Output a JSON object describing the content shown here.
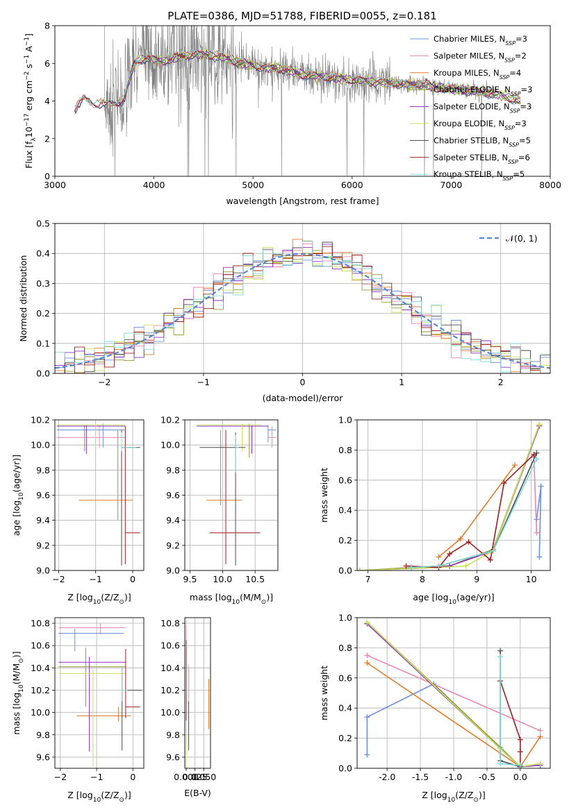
{
  "figure_title": "PLATE=0386, MJD=51788, FIBERID=0055, z=0.181",
  "colors": {
    "Chabrier MILES": "#6a8fdc",
    "Salpeter MILES": "#e886b4",
    "Kroupa MILES": "#e07b2a",
    "Chabrier ELODIE": "#8f9a2a",
    "Salpeter ELODIE": "#8a2fc0",
    "Kroupa ELODIE": "#c7e05a",
    "Chabrier STELIB": "#4a4a4a",
    "Salpeter STELIB": "#a01c1c",
    "Kroupa STELIB": "#7fd9d9",
    "normal": "#5b86d6",
    "data": "#808080",
    "grid": "#b0b0b0"
  },
  "chart_data": [
    {
      "type": "line",
      "id": "spectrum",
      "title": "PLATE=0386, MJD=51788, FIBERID=0055, z=0.181",
      "xlabel": "wavelength [Angstrom, rest frame]",
      "ylabel_main": "Flux [f",
      "ylabel_sub": "λ",
      "ylabel_rest": "10",
      "ylabel_exp1": "−17",
      "ylabel_unit": " erg cm",
      "ylabel_exp2": "−2",
      "ylabel_s": " s",
      "ylabel_exp3": "−1",
      "ylabel_end": " A",
      "ylabel_exp4": "−1",
      "ylabel_close": "]",
      "xlim": [
        3000,
        8000
      ],
      "ylim": [
        0,
        8
      ],
      "xticks": [
        3000,
        4000,
        5000,
        6000,
        7000,
        8000
      ],
      "yticks": [
        0,
        2,
        4,
        6,
        8
      ],
      "legend_position": "right",
      "legend": [
        {
          "name": "Chabrier MILES",
          "n": "3"
        },
        {
          "name": "Salpeter MILES",
          "n": "2"
        },
        {
          "name": "Kroupa MILES",
          "n": "4"
        },
        {
          "name": "Chabrier ELODIE",
          "n": "3"
        },
        {
          "name": "Salpeter ELODIE",
          "n": "3"
        },
        {
          "name": "Kroupa ELODIE",
          "n": "3"
        },
        {
          "name": "Chabrier STELIB",
          "n": "5"
        },
        {
          "name": "Salpeter STELIB",
          "n": "6"
        },
        {
          "name": "Kroupa STELIB",
          "n": "5"
        }
      ],
      "legend_suffix": "SSP",
      "legend_prefix": "N",
      "model_continuum": {
        "x": [
          3200,
          3300,
          3400,
          3500,
          3600,
          3700,
          3800,
          3900,
          4000,
          4100,
          4300,
          4500,
          4700,
          4900,
          5100,
          5300,
          5500,
          5700,
          5900,
          6100,
          6300,
          6500,
          6700,
          6900,
          7100,
          7300,
          7500,
          7700
        ],
        "y": [
          3.6,
          4.1,
          3.9,
          3.8,
          3.9,
          4.1,
          6.0,
          6.3,
          6.2,
          6.1,
          6.4,
          6.5,
          6.3,
          6.0,
          5.8,
          5.7,
          5.4,
          5.3,
          5.2,
          5.1,
          5.0,
          4.9,
          4.9,
          4.7,
          4.6,
          4.5,
          4.3,
          4.0
        ]
      }
    },
    {
      "type": "line",
      "id": "residuals",
      "xlabel": "(data-model)/error",
      "ylabel": "Normed distribution",
      "xlim": [
        -2.5,
        2.5
      ],
      "ylim": [
        0,
        0.5
      ],
      "xticks": [
        -2,
        -1,
        0,
        1,
        2
      ],
      "yticks": [
        0.0,
        0.1,
        0.2,
        0.3,
        0.4,
        0.5
      ],
      "legend_label": "𝒩(0, 1)",
      "legend_position": "top-right",
      "histogram_bin_width": 0.1
    },
    {
      "type": "scatter",
      "id": "age-vs-Z",
      "xlabel": "Z [log",
      "xlabel_sub": "10",
      "xlabel_rest": "(Z/Z",
      "xlabel_sub2": "⊙",
      "xlabel_end": ")]",
      "ylabel": "age  [log",
      "ylabel_sub": "10",
      "ylabel_rest": "(age/yr)]",
      "xlim": [
        -2.1,
        0.3
      ],
      "ylim": [
        9.0,
        10.2
      ],
      "xticks": [
        -2,
        -1,
        0
      ],
      "yticks": [
        9.0,
        9.2,
        9.4,
        9.6,
        9.8,
        10.0,
        10.2
      ],
      "points": [
        {
          "model": "Chabrier MILES",
          "x": -0.8,
          "xl": -2.05,
          "xh": -0.2,
          "y": 10.12,
          "yl": 9.98,
          "yh": 10.17
        },
        {
          "model": "Salpeter MILES",
          "x": -0.9,
          "xl": -2.05,
          "xh": -0.2,
          "y": 10.06,
          "yl": 9.98,
          "yh": 10.16
        },
        {
          "model": "Kroupa MILES",
          "x": -0.4,
          "xl": -1.45,
          "xh": 0.0,
          "y": 9.56,
          "yl": 9.4,
          "yh": 10.12
        },
        {
          "model": "Chabrier ELODIE",
          "x": -1.3,
          "xl": -2.05,
          "xh": -0.2,
          "y": 10.15,
          "yl": 9.95,
          "yh": 10.16
        },
        {
          "model": "Salpeter ELODIE",
          "x": -1.25,
          "xl": -2.05,
          "xh": -0.2,
          "y": 10.15,
          "yl": 9.93,
          "yh": 10.16
        },
        {
          "model": "Kroupa ELODIE",
          "x": -1.0,
          "xl": -2.05,
          "xh": -0.2,
          "y": 10.16,
          "yl": 9.95,
          "yh": 10.17
        },
        {
          "model": "Chabrier STELIB",
          "x": -0.3,
          "xl": -0.3,
          "xh": 0.2,
          "y": 9.98,
          "yl": 9.04,
          "yh": 10.12
        },
        {
          "model": "Salpeter STELIB",
          "x": -0.2,
          "xl": -0.2,
          "xh": 0.2,
          "y": 9.3,
          "yl": 9.05,
          "yh": 10.15
        },
        {
          "model": "Kroupa STELIB",
          "x": -0.3,
          "xl": -0.3,
          "xh": 0.1,
          "y": 9.98,
          "yl": 9.95,
          "yh": 10.1
        }
      ]
    },
    {
      "type": "scatter",
      "id": "age-vs-mass",
      "xlabel": "mass [log",
      "xlabel_sub": "10",
      "xlabel_rest": "(M/M",
      "xlabel_sub2": "⊙",
      "xlabel_end": ")]",
      "xlim": [
        9.42,
        10.85
      ],
      "ylim": [
        9.0,
        10.2
      ],
      "xticks": [
        9.5,
        10.0,
        10.5
      ],
      "yticks": [
        9.0,
        9.2,
        9.4,
        9.6,
        9.8,
        10.0,
        10.2
      ],
      "points": [
        {
          "model": "Chabrier MILES",
          "x": 10.7,
          "xl": 10.7,
          "xh": 10.82,
          "y": 10.12,
          "yl": 10.02,
          "yh": 10.16
        },
        {
          "model": "Salpeter MILES",
          "x": 10.76,
          "xl": 10.7,
          "xh": 10.82,
          "y": 10.06,
          "yl": 9.98,
          "yh": 10.15
        },
        {
          "model": "Kroupa MILES",
          "x": 9.97,
          "xl": 9.75,
          "xh": 10.3,
          "y": 9.56,
          "yl": 9.52,
          "yh": 10.12
        },
        {
          "model": "Chabrier ELODIE",
          "x": 10.41,
          "xl": 9.6,
          "xh": 10.7,
          "y": 10.15,
          "yl": 9.9,
          "yh": 10.17
        },
        {
          "model": "Salpeter ELODIE",
          "x": 10.45,
          "xl": 9.6,
          "xh": 10.7,
          "y": 10.15,
          "yl": 9.93,
          "yh": 10.16
        },
        {
          "model": "Kroupa ELODIE",
          "x": 10.3,
          "xl": 9.6,
          "xh": 10.6,
          "y": 10.16,
          "yl": 9.95,
          "yh": 10.17
        },
        {
          "model": "Chabrier STELIB",
          "x": 10.2,
          "xl": 9.65,
          "xh": 10.35,
          "y": 9.98,
          "yl": 9.04,
          "yh": 10.1
        },
        {
          "model": "Salpeter STELIB",
          "x": 10.05,
          "xl": 9.8,
          "xh": 10.58,
          "y": 9.3,
          "yl": 9.05,
          "yh": 10.12
        },
        {
          "model": "Kroupa STELIB",
          "x": 10.2,
          "xl": 10.2,
          "xh": 10.25,
          "y": 9.98,
          "yl": 9.78,
          "yh": 10.08
        }
      ]
    },
    {
      "type": "line",
      "id": "massweight-vs-age",
      "xlabel": "age  [log",
      "xlabel_sub": "10",
      "xlabel_rest": "(age/yr)]",
      "ylabel": "mass weight",
      "xlim": [
        6.8,
        10.35
      ],
      "ylim": [
        0,
        1.0
      ],
      "xticks": [
        7,
        8,
        9,
        10
      ],
      "yticks": [
        0.0,
        0.2,
        0.4,
        0.6,
        0.8,
        1.0
      ],
      "series": [
        {
          "model": "Chabrier MILES",
          "x": [
            10.1,
            10.18,
            10.15
          ],
          "y": [
            0.34,
            0.56,
            0.09
          ]
        },
        {
          "model": "Salpeter MILES",
          "x": [
            10.05,
            10.1
          ],
          "y": [
            0.75,
            0.25
          ]
        },
        {
          "model": "Kroupa MILES",
          "x": [
            8.3,
            8.7,
            9.7
          ],
          "y": [
            0.09,
            0.21,
            0.7
          ]
        },
        {
          "model": "Chabrier ELODIE",
          "x": [
            6.85,
            8.3,
            8.5,
            9.3,
            10.15
          ],
          "y": [
            0.0,
            0.03,
            0.03,
            0.14,
            0.97
          ]
        },
        {
          "model": "Salpeter ELODIE",
          "x": [
            6.85,
            8.3,
            8.5,
            9.3,
            10.15
          ],
          "y": [
            0.0,
            0.02,
            0.03,
            0.13,
            0.96
          ]
        },
        {
          "model": "Kroupa ELODIE",
          "x": [
            6.85,
            8.3,
            8.8,
            9.3,
            10.15
          ],
          "y": [
            0.0,
            0.02,
            0.03,
            0.13,
            0.97
          ]
        },
        {
          "model": "Chabrier STELIB",
          "x": [
            7.8,
            8.3,
            9.3,
            10.1
          ],
          "y": [
            0.02,
            0.03,
            0.13,
            0.78
          ]
        },
        {
          "model": "Salpeter STELIB",
          "x": [
            7.7,
            8.3,
            8.5,
            8.85,
            9.25,
            9.5,
            10.05
          ],
          "y": [
            0.03,
            0.02,
            0.11,
            0.19,
            0.07,
            0.58,
            0.77
          ]
        },
        {
          "model": "Kroupa STELIB",
          "x": [
            7.8,
            8.3,
            9.3,
            10.1
          ],
          "y": [
            0.02,
            0.03,
            0.13,
            0.74
          ]
        }
      ]
    },
    {
      "type": "scatter",
      "id": "mass-vs-Z",
      "xlabel": "Z [log",
      "xlabel_sub": "10",
      "xlabel_rest": "(Z/Z",
      "xlabel_sub2": "⊙",
      "xlabel_end": ")]",
      "ylabel": "mass [log",
      "ylabel_sub": "10",
      "ylabel_rest": "(M/M",
      "ylabel_sub2": "⊙",
      "ylabel_end": ")]",
      "xlim": [
        -2.15,
        0.3
      ],
      "ylim": [
        9.5,
        10.85
      ],
      "xticks": [
        -2,
        -1,
        0
      ],
      "yticks": [
        9.6,
        9.8,
        10.0,
        10.2,
        10.4,
        10.6,
        10.8
      ],
      "points": [
        {
          "model": "Chabrier MILES",
          "x": -1.6,
          "xl": -2.05,
          "xh": -0.25,
          "y": 10.71,
          "yl": 10.55,
          "yh": 10.75
        },
        {
          "model": "Salpeter MILES",
          "x": -0.9,
          "xl": -2.05,
          "xh": -0.2,
          "y": 10.76,
          "yl": 10.7,
          "yh": 10.8
        },
        {
          "model": "Kroupa MILES",
          "x": -0.4,
          "xl": -1.55,
          "xh": -0.05,
          "y": 9.97,
          "yl": 9.92,
          "yh": 10.05
        },
        {
          "model": "Chabrier ELODIE",
          "x": -1.3,
          "xl": -2.05,
          "xh": -0.2,
          "y": 10.41,
          "yl": 10.05,
          "yh": 10.58
        },
        {
          "model": "Salpeter ELODIE",
          "x": -1.2,
          "xl": -2.05,
          "xh": -0.2,
          "y": 10.45,
          "yl": 9.65,
          "yh": 10.5
        },
        {
          "model": "Kroupa ELODIE",
          "x": -1.1,
          "xl": -2.05,
          "xh": -0.2,
          "y": 10.35,
          "yl": 9.52,
          "yh": 10.4
        },
        {
          "model": "Chabrier STELIB",
          "x": -0.3,
          "xl": -0.3,
          "xh": 0.25,
          "y": 10.2,
          "yl": 9.66,
          "yh": 10.4
        },
        {
          "model": "Salpeter STELIB",
          "x": -0.2,
          "xl": -0.2,
          "xh": 0.2,
          "y": 10.05,
          "yl": 9.95,
          "yh": 10.57
        },
        {
          "model": "Kroupa STELIB",
          "x": -0.3,
          "xl": -0.3,
          "xh": -0.15,
          "y": 10.2,
          "yl": 10.1,
          "yh": 10.42
        }
      ]
    },
    {
      "type": "scatter",
      "id": "mass-vs-EBV",
      "xlabel": "E(B-V)",
      "xlim": [
        -0.004,
        0.069
      ],
      "ylim": [
        9.5,
        10.85
      ],
      "xticks": [
        0.0,
        0.025,
        0.05
      ],
      "yticks": [
        9.6,
        9.8,
        10.0,
        10.2,
        10.4,
        10.6,
        10.8
      ],
      "points": [
        {
          "model": "Salpeter MILES",
          "x": 0.0,
          "yl": 10.5,
          "yh": 10.78
        },
        {
          "model": "Salpeter STELIB",
          "x": 0.0,
          "yl": 9.93,
          "yh": 10.65
        },
        {
          "model": "Kroupa ELODIE",
          "x": 0.0,
          "yl": 9.5,
          "yh": 9.8
        },
        {
          "model": "Chabrier STELIB",
          "x": 0.007,
          "yl": 9.66,
          "yh": 10.4
        },
        {
          "model": "Kroupa STELIB",
          "x": 0.007,
          "yl": 10.1,
          "yh": 10.43
        },
        {
          "model": "Kroupa MILES",
          "x": 0.064,
          "yl": 9.85,
          "yh": 10.3
        }
      ]
    },
    {
      "type": "line",
      "id": "massweight-vs-Z",
      "xlabel": "Z [log",
      "xlabel_sub": "10",
      "xlabel_rest": "(Z/Z",
      "xlabel_sub2": "⊙",
      "xlabel_end": ")]",
      "ylabel": "mass weight",
      "xlim": [
        -2.45,
        0.45
      ],
      "ylim": [
        0,
        1.0
      ],
      "xticks": [
        -2.0,
        -1.5,
        -1.0,
        -0.5,
        0.0
      ],
      "yticks": [
        0.0,
        0.2,
        0.4,
        0.6,
        0.8,
        1.0
      ],
      "series": [
        {
          "model": "Chabrier MILES",
          "x": [
            -2.3,
            -2.3,
            -1.3,
            0.0
          ],
          "y": [
            0.09,
            0.34,
            0.56,
            0.01
          ]
        },
        {
          "model": "Salpeter MILES",
          "x": [
            -2.3,
            0.3
          ],
          "y": [
            0.75,
            0.25
          ]
        },
        {
          "model": "Kroupa MILES",
          "x": [
            -2.3,
            0.0,
            0.3
          ],
          "y": [
            0.7,
            0.01,
            0.21
          ]
        },
        {
          "model": "Chabrier ELODIE",
          "x": [
            -2.3,
            -0.3,
            0.0,
            0.3
          ],
          "y": [
            0.97,
            0.14,
            0.01,
            0.03
          ]
        },
        {
          "model": "Salpeter ELODIE",
          "x": [
            -2.3,
            -0.3,
            0.0,
            0.3
          ],
          "y": [
            0.96,
            0.13,
            0.01,
            0.02
          ]
        },
        {
          "model": "Kroupa ELODIE",
          "x": [
            -2.3,
            -0.3,
            0.0,
            0.3
          ],
          "y": [
            0.97,
            0.13,
            0.01,
            0.03
          ]
        },
        {
          "model": "Chabrier STELIB",
          "x": [
            -0.3,
            -0.3,
            0.0
          ],
          "y": [
            0.78,
            0.05,
            0.01
          ]
        },
        {
          "model": "Salpeter STELIB",
          "x": [
            -0.3,
            0.0,
            0.0,
            0.0
          ],
          "y": [
            0.58,
            0.19,
            0.11,
            0.02
          ]
        },
        {
          "model": "Kroupa STELIB",
          "x": [
            -0.3,
            -0.3,
            0.0
          ],
          "y": [
            0.74,
            0.03,
            0.02
          ]
        }
      ]
    }
  ]
}
